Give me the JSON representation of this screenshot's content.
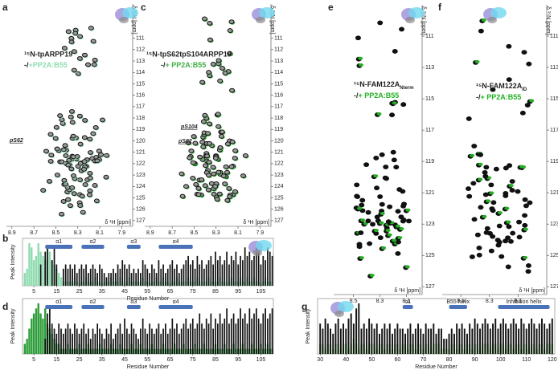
{
  "spectra": [
    {
      "letter": "a",
      "title": "¹⁵N-tpARPP19",
      "legend_prefix": "-/",
      "legend_text": "+PP2A:B55",
      "color": "#8fdcb0",
      "x_label": "δ ¹H [ppm]",
      "y_label": "δ ¹⁵N [ppm]",
      "xlim": [
        8.95,
        7.8
      ],
      "ylim": [
        108,
        127.5
      ],
      "xticks": [
        8.9,
        8.7,
        8.5,
        8.3,
        8.1,
        7.9
      ],
      "yticks": [
        111,
        112,
        113,
        114,
        115,
        116,
        117,
        118,
        119,
        120,
        121,
        122,
        123,
        124,
        125,
        126,
        127
      ],
      "annotations": [
        "pS62"
      ]
    },
    {
      "letter": "c",
      "title": "¹⁵N-tpS62tpS104ARPP19",
      "legend_prefix": "-/",
      "legend_text": "+ PP2A:B55",
      "color": "#3cb043",
      "x_label": "δ ¹H [ppm]",
      "y_label": "δ ¹⁵N [ppm]",
      "xlim": [
        8.95,
        7.8
      ],
      "ylim": [
        108,
        127.5
      ],
      "xticks": [
        8.9,
        8.7,
        8.5,
        8.3,
        8.1,
        7.9
      ],
      "yticks": [
        111,
        112,
        113,
        114,
        115,
        116,
        117,
        118,
        119,
        120,
        121,
        122,
        123,
        124,
        125,
        126,
        127
      ],
      "annotations": [
        "pS104",
        "pS62"
      ]
    },
    {
      "letter": "e",
      "title": "¹⁵N-FAM122A",
      "title_sub": "Nterm",
      "legend_prefix": "-/",
      "legend_text": "+ PP2A:B55",
      "color": "#22b022",
      "x_label": "δ ¹H [ppm]",
      "y_label": "δ ¹⁵N [ppm]",
      "xlim": [
        8.65,
        7.98
      ],
      "ylim": [
        109,
        127.5
      ],
      "xticks": [
        8.5,
        8.3,
        8.1
      ],
      "yticks": [
        111,
        113,
        115,
        117,
        119,
        121,
        123,
        125,
        127
      ],
      "annotations": []
    },
    {
      "letter": "f",
      "title": "¹⁵N-FAM122A",
      "title_sub": "ID",
      "legend_prefix": "-/",
      "legend_text": "+ PP2A:B55",
      "color": "#22b022",
      "x_label": "δ ¹H [ppm]",
      "y_label": "δ ¹⁵N [ppm]",
      "xlim": [
        8.63,
        7.9
      ],
      "ylim": [
        109,
        127.5
      ],
      "xticks": [
        8.5,
        8.3,
        8.1
      ],
      "yticks": [
        111,
        113,
        115,
        117,
        119,
        121,
        123,
        125,
        127
      ],
      "annotations": []
    }
  ],
  "bar_charts": [
    {
      "letter": "b",
      "y_label": "Peak Intensity",
      "x_label": "Residue Number",
      "xlim": [
        0,
        110.5
      ],
      "ylim": [
        0,
        1
      ],
      "xticks": [
        5,
        15,
        25,
        35,
        45,
        55,
        65,
        75,
        85,
        95,
        105
      ],
      "helices": [
        {
          "label": "α1",
          "start": 10,
          "end": 22
        },
        {
          "label": "α2",
          "start": 26,
          "end": 36
        },
        {
          "label": "α3",
          "start": 46,
          "end": 52
        },
        {
          "label": "α4",
          "start": 60,
          "end": 75
        }
      ],
      "x": [
        1,
        2,
        3,
        4,
        5,
        6,
        7,
        8,
        9,
        10,
        11,
        12,
        13,
        14,
        15,
        16,
        17,
        18,
        19,
        20,
        21,
        22,
        23,
        24,
        25,
        26,
        27,
        28,
        29,
        30,
        31,
        32,
        33,
        34,
        35,
        36,
        37,
        38,
        39,
        40,
        41,
        42,
        43,
        44,
        45,
        46,
        47,
        48,
        49,
        50,
        51,
        52,
        53,
        54,
        55,
        56,
        57,
        58,
        59,
        60,
        61,
        62,
        63,
        64,
        65,
        66,
        67,
        68,
        69,
        70,
        71,
        72,
        73,
        74,
        75,
        76,
        77,
        78,
        79,
        80,
        81,
        82,
        83,
        84,
        85,
        86,
        87,
        88,
        89,
        90,
        91,
        92,
        93,
        94,
        95,
        96,
        97,
        98,
        99,
        100,
        101,
        102,
        103,
        104,
        105,
        106,
        107,
        108,
        109,
        110
      ],
      "series": [
        {
          "color": "#8fdcb0",
          "values": [
            0.3,
            0.4,
            1,
            0.9,
            0.6,
            0.7,
            1,
            0.8,
            0.7,
            0.6,
            0.9,
            0.8,
            0.6,
            0.5,
            0.4,
            0.3,
            0.2,
            0.1,
            0.1,
            0.1,
            0.1,
            0.1,
            0.2,
            0.1,
            0.05,
            0.1,
            0.1,
            0.2,
            0.1,
            0.1,
            0.1,
            0.2,
            0.1,
            0.1,
            0.05,
            0.1,
            0.1,
            0.1,
            0.2,
            0.1,
            0.1,
            0.1,
            0.2,
            0.1,
            0.05,
            0.1,
            0.2,
            0.1,
            0.1,
            0.1,
            0.1,
            0.1,
            0.2,
            0.1,
            0.1,
            0.05,
            0.1,
            0.1,
            0.2,
            0.1,
            0.1,
            0.2,
            0.1,
            0.1,
            0.05,
            0.1,
            0.1,
            0.2,
            0.1,
            0.1,
            0.1,
            0.1,
            0.2,
            0.1,
            0.1,
            0.1,
            0.2,
            0.1,
            0.05,
            0.1,
            0.1,
            0.2,
            0.1,
            0.1,
            0.1,
            0.1,
            0.2,
            0.1,
            0.1,
            0.05,
            0.1,
            0.2,
            0.1,
            0.1,
            0.1,
            0.2,
            0.1,
            0.1,
            0.2,
            0.1,
            0.1,
            0.2,
            0.1,
            0.1,
            0.05,
            0.1,
            0.2,
            0.1,
            0.1,
            0.1
          ]
        },
        {
          "color": "#111111",
          "values": [
            0,
            0,
            0,
            0,
            0,
            0,
            0,
            0.5,
            0,
            0.8,
            0.9,
            0,
            0.6,
            0.9,
            0.5,
            0,
            0,
            0.4,
            0.5,
            0.4,
            0.5,
            0.4,
            0.5,
            0.3,
            0.4,
            0.5,
            0.4,
            0.5,
            0.3,
            0.4,
            0.5,
            0.4,
            0.3,
            0.5,
            0.4,
            0.3,
            0.2,
            0.3,
            0.3,
            0.4,
            0.3,
            0.5,
            0.4,
            0.6,
            0.5,
            0.4,
            0.5,
            0.3,
            0.4,
            0.3,
            0.4,
            0.3,
            0.6,
            0.5,
            0.4,
            0.3,
            0.5,
            0.4,
            0.3,
            0.6,
            0.4,
            0.5,
            0.3,
            0.4,
            0.5,
            0.6,
            0.4,
            0.5,
            0.3,
            0.4,
            0.5,
            0.6,
            0.7,
            0.5,
            0.6,
            0.4,
            0.7,
            0.5,
            0.6,
            0.4,
            0.5,
            0.6,
            0.7,
            0.5,
            0.8,
            0.6,
            0.7,
            0.5,
            0.6,
            0.8,
            0.5,
            0.7,
            0.6,
            0.8,
            0.5,
            0.7,
            0.6,
            0.9,
            0.7,
            0.8,
            0.6,
            0.7,
            0.9,
            0.8,
            0.5,
            0.7,
            0.6,
            0.9,
            0.8,
            0.7
          ]
        }
      ]
    },
    {
      "letter": "d",
      "y_label": "Peak Intensity",
      "x_label": "Residue Number",
      "xlim": [
        0,
        110.5
      ],
      "ylim": [
        0,
        1
      ],
      "xticks": [
        5,
        15,
        25,
        35,
        45,
        55,
        65,
        75,
        85,
        95,
        105
      ],
      "helices": [
        {
          "label": "α1",
          "start": 10,
          "end": 22
        },
        {
          "label": "α2",
          "start": 26,
          "end": 36
        },
        {
          "label": "α3",
          "start": 46,
          "end": 52
        },
        {
          "label": "α4",
          "start": 60,
          "end": 75
        }
      ],
      "x": [
        1,
        2,
        3,
        4,
        5,
        6,
        7,
        8,
        9,
        10,
        11,
        12,
        13,
        14,
        15,
        16,
        17,
        18,
        19,
        20,
        21,
        22,
        23,
        24,
        25,
        26,
        27,
        28,
        29,
        30,
        31,
        32,
        33,
        34,
        35,
        36,
        37,
        38,
        39,
        40,
        41,
        42,
        43,
        44,
        45,
        46,
        47,
        48,
        49,
        50,
        51,
        52,
        53,
        54,
        55,
        56,
        57,
        58,
        59,
        60,
        61,
        62,
        63,
        64,
        65,
        66,
        67,
        68,
        69,
        70,
        71,
        72,
        73,
        74,
        75,
        76,
        77,
        78,
        79,
        80,
        81,
        82,
        83,
        84,
        85,
        86,
        87,
        88,
        89,
        90,
        91,
        92,
        93,
        94,
        95,
        96,
        97,
        98,
        99,
        100,
        101,
        102,
        103,
        104,
        105,
        106,
        107,
        108,
        109,
        110
      ],
      "series": [
        {
          "color": "#2e9e3a",
          "values": [
            0.2,
            0.3,
            0.5,
            0.7,
            0.8,
            0.9,
            1,
            0.8,
            0.7,
            0.9,
            0.6,
            0.5,
            0.4,
            0.3,
            0.2,
            0.2,
            0.1,
            0.1,
            0.1,
            0.2,
            0.1,
            0.1,
            0.1,
            0.1,
            0.2,
            0.1,
            0.1,
            0.1,
            0.2,
            0.1,
            0.1,
            0.1,
            0.1,
            0.2,
            0.1,
            0.1,
            0.1,
            0.1,
            0.2,
            0.1,
            0.1,
            0.1,
            0.2,
            0.1,
            0.1,
            0.1,
            0.1,
            0.2,
            0.1,
            0.1,
            0.1,
            0.2,
            0.1,
            0.1,
            0.1,
            0.1,
            0.2,
            0.1,
            0.1,
            0.1,
            0.1,
            0.2,
            0.1,
            0.1,
            0.1,
            0.1,
            0.2,
            0.1,
            0.1,
            0.1,
            0.2,
            0.1,
            0.1,
            0.1,
            0.1,
            0.2,
            0.1,
            0.1,
            0.1,
            0.2,
            0.1,
            0.1,
            0.1,
            0.1,
            0.2,
            0.1,
            0.1,
            0.1,
            0.2,
            0.1,
            0.1,
            0.1,
            0.2,
            0.1,
            0.1,
            0.1,
            0.2,
            0.1,
            0.1,
            0.1,
            0.2,
            0.1,
            0.1,
            0.1,
            0.2,
            0.1,
            0.1,
            0.2,
            0.1,
            0.1
          ]
        },
        {
          "color": "#111111",
          "values": [
            0,
            0,
            0,
            0,
            0,
            0,
            0,
            0,
            0,
            0.3,
            0.8,
            0.9,
            0.6,
            0.5,
            0.4,
            0.6,
            0.5,
            0.4,
            0.5,
            0.6,
            0.5,
            0.4,
            0.6,
            0.5,
            0.4,
            0.5,
            0.6,
            0.4,
            0.5,
            0.3,
            0.5,
            0.4,
            0.6,
            0.5,
            0.4,
            0.3,
            0.5,
            0.4,
            0.6,
            0.3,
            0.4,
            0.5,
            0.6,
            0.4,
            0.7,
            0.5,
            0.4,
            0.6,
            0.5,
            0.4,
            0.3,
            0.5,
            0.7,
            0.5,
            0.4,
            0.6,
            0.5,
            0.4,
            0.5,
            0.6,
            0.4,
            0.5,
            0.6,
            0.4,
            0.5,
            0.7,
            0.5,
            0.6,
            0.4,
            0.5,
            0.6,
            0.7,
            0.5,
            0.6,
            0.7,
            0.5,
            0.6,
            0.8,
            0.6,
            0.5,
            0.7,
            0.6,
            0.8,
            0.5,
            0.7,
            0.6,
            0.8,
            0.6,
            0.7,
            0.9,
            0.6,
            0.7,
            0.8,
            0.6,
            0.7,
            0.9,
            0.7,
            0.8,
            0.6,
            0.9,
            0.7,
            0.8,
            0.9,
            0.7,
            0.6,
            0.8,
            0.9,
            0.7,
            0.8,
            0.9
          ]
        }
      ]
    },
    {
      "letter": "g",
      "y_label": "Peak Intensity",
      "x_label": "Residue Number",
      "xlim": [
        29,
        121
      ],
      "ylim": [
        0,
        1
      ],
      "xticks": [
        30,
        40,
        50,
        60,
        70,
        80,
        90,
        100,
        110,
        120
      ],
      "helices": [
        {
          "label": "α1",
          "start": 62,
          "end": 66
        },
        {
          "label": "B55 helix",
          "start": 80,
          "end": 87
        },
        {
          "label": "Inhibition helix",
          "start": 99,
          "end": 119
        }
      ],
      "x": [
        30,
        31,
        32,
        33,
        34,
        35,
        36,
        37,
        38,
        39,
        40,
        41,
        42,
        43,
        44,
        45,
        46,
        47,
        48,
        49,
        50,
        51,
        52,
        53,
        54,
        55,
        56,
        57,
        58,
        59,
        60,
        61,
        62,
        63,
        64,
        65,
        66,
        67,
        68,
        69,
        70,
        71,
        72,
        73,
        74,
        75,
        76,
        77,
        78,
        79,
        80,
        81,
        82,
        83,
        84,
        85,
        86,
        87,
        88,
        89,
        90,
        91,
        92,
        93,
        94,
        95,
        96,
        97,
        98,
        99,
        100,
        101,
        102,
        103,
        104,
        105,
        106,
        107,
        108,
        109,
        110,
        111,
        112,
        113,
        114,
        115,
        116,
        117,
        118,
        119,
        120
      ],
      "series": [
        {
          "color": "#a8e0a0",
          "values": [
            0.2,
            0.2,
            0.1,
            0.2,
            0.2,
            0.1,
            0.2,
            0.2,
            0.1,
            0.2,
            0.2,
            0.1,
            0.2,
            0.3,
            0.2,
            0.1,
            0.2,
            0.2,
            0.1,
            0.2,
            0.2,
            0.2,
            0.1,
            0.2,
            0.2,
            0.1,
            0.2,
            0.2,
            0.1,
            0.2,
            0.2,
            0.1,
            0.2,
            0.2,
            0.1,
            0.2,
            0.2,
            0.1,
            0.2,
            0.2,
            0.1,
            0.2,
            0.2,
            0.1,
            0.2,
            0.2,
            0.2,
            0.1,
            0.1,
            0.1,
            0.1,
            0.2,
            0.2,
            0.1,
            0.2,
            0.2,
            0.1,
            0.2,
            0.2,
            0.1,
            0.2,
            0.2,
            0.1,
            0.2,
            0.2,
            0.2,
            0.1,
            0.2,
            0.2,
            0.1,
            0.2,
            0.2,
            0.1,
            0.2,
            0.2,
            0.1,
            0.2,
            0.2,
            0.1,
            0.2,
            0.2,
            0.1,
            0.2,
            0.2,
            0.1,
            0.2,
            0.2,
            0.1,
            0.2,
            0.2,
            0.2
          ]
        },
        {
          "color": "#111111",
          "values": [
            0.6,
            0.5,
            0.7,
            0.6,
            0.5,
            0.4,
            0.6,
            0.7,
            0.5,
            0.6,
            0.5,
            0.7,
            0.8,
            0.6,
            0.9,
            1,
            0.5,
            0.6,
            0.5,
            0.7,
            0.6,
            0.5,
            0.6,
            0.4,
            0.5,
            0.6,
            0.5,
            0.6,
            0.4,
            0.5,
            0.6,
            0.5,
            0.5,
            0.4,
            0.5,
            0.6,
            0.4,
            0.5,
            0.6,
            0.5,
            0.4,
            0.6,
            0.5,
            0.5,
            0.6,
            0.4,
            0.5,
            0.5,
            0.3,
            0.3,
            0.4,
            0.5,
            0.4,
            0.6,
            0.5,
            0.6,
            0.5,
            0.4,
            0.6,
            0.5,
            0.7,
            0.6,
            0.5,
            0.6,
            0.7,
            0.6,
            0.5,
            0.6,
            0.7,
            0.5,
            0.6,
            0.7,
            0.6,
            0.5,
            0.6,
            0.7,
            0.6,
            0.5,
            0.7,
            0.6,
            0.5,
            0.6,
            0.7,
            0.6,
            0.5,
            0.6,
            0.7,
            0.6,
            0.5,
            0.6,
            0.7
          ]
        }
      ]
    }
  ]
}
